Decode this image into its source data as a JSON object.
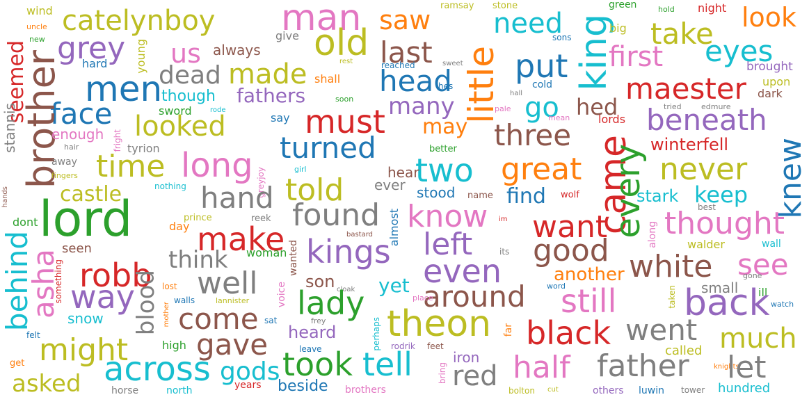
{
  "words": [
    "wind",
    "uncle",
    "new",
    "catelynboy",
    "man",
    "saw",
    "ramsay",
    "stone",
    "need",
    "green",
    "hold",
    "night",
    "look",
    "grey",
    "us",
    "always",
    "give",
    "old",
    "young",
    "last",
    "sons",
    "king",
    "big",
    "take",
    "first",
    "eyes",
    "seemed",
    "hard",
    "rest",
    "reached",
    "sweet",
    "put",
    "brought",
    "upon",
    "men",
    "dead",
    "made",
    "shall",
    "head",
    "hes",
    "maester",
    "dark",
    "face",
    "though",
    "fathers",
    "soon",
    "little",
    "many",
    "hall",
    "cold",
    "tried",
    "edmure",
    "sword",
    "rode",
    "say",
    "must",
    "pale",
    "go",
    "hed",
    "mean",
    "brother",
    "stannis",
    "looked",
    "may",
    "lords",
    "three",
    "beneath",
    "enough",
    "fright",
    "tyrion",
    "hair",
    "turned",
    "better",
    "winterfell",
    "away",
    "time",
    "long",
    "great",
    "two",
    "never",
    "knew",
    "fingers",
    "girl",
    "greyjoy",
    "hear",
    "ever",
    "came",
    "every",
    "hands",
    "castle",
    "nothing",
    "hand",
    "told",
    "stood",
    "name",
    "find",
    "wolf",
    "stark",
    "keep",
    "best",
    "lord",
    "prince",
    "reek",
    "found",
    "know",
    "want",
    "thought",
    "dont",
    "day",
    "bastard",
    "almost",
    "im",
    "left",
    "make",
    "walder",
    "along",
    "wall",
    "seen",
    "woman",
    "kings",
    "good",
    "its",
    "think",
    "asha",
    "robb",
    "behind",
    "wanted",
    "even",
    "another",
    "white",
    "see",
    "well",
    "voice",
    "yet",
    "cloak",
    "son",
    "way",
    "something",
    "gone",
    "small",
    "lost",
    "blood",
    "word",
    "around",
    "taken",
    "ill",
    "walls",
    "lannister",
    "still",
    "back",
    "place",
    "snow",
    "mother",
    "come",
    "watch",
    "frey",
    "sat",
    "theon",
    "lady",
    "felt",
    "went",
    "black",
    "heard",
    "gave",
    "perhaps",
    "much",
    "high",
    "leave",
    "rodrik",
    "feet",
    "far",
    "might",
    "iron",
    "called",
    "get",
    "took",
    "tell",
    "gods",
    "bring",
    "knights",
    "across",
    "half",
    "father",
    "let",
    "red",
    "asked",
    "beside",
    "hundred",
    "north",
    "horse",
    "brothers",
    "years",
    "bolton",
    "cut",
    "others",
    "luwin",
    "tower"
  ],
  "colors": {
    "red": "#d62728",
    "orange": "#ff7f0e",
    "green": "#2ca02c",
    "blue": "#1f77b4",
    "purple": "#9467bd",
    "brown": "#8c564b",
    "pink": "#e377c2",
    "gray": "#7f7f7f",
    "olive": "#bcbd22",
    "cyan": "#17becf"
  }
}
